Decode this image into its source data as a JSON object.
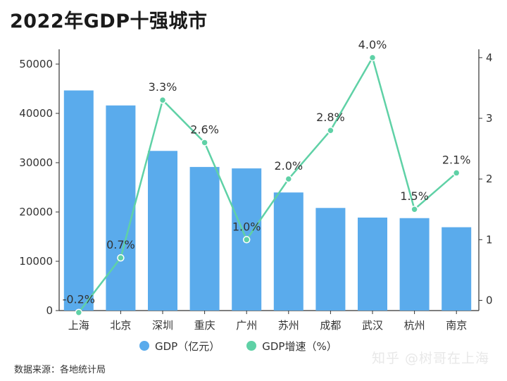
{
  "title": "2022年GDP十强城市",
  "source": "数据来源：各地统计局",
  "watermark": "知乎 @树哥在上海",
  "legend": {
    "gdp": "GDP（亿元）",
    "growth": "GDP增速（%）"
  },
  "colors": {
    "bar": "#5aabec",
    "line": "#5fd1a6",
    "axis": "#333333"
  },
  "chart_data": {
    "type": "bar+line",
    "categories": [
      "上海",
      "北京",
      "深圳",
      "重庆",
      "广州",
      "苏州",
      "成都",
      "武汉",
      "杭州",
      "南京"
    ],
    "series": [
      {
        "name": "GDP（亿元）",
        "type": "bar",
        "axis": "left",
        "values": [
          44653,
          41611,
          32388,
          29129,
          28839,
          23958,
          20818,
          18866,
          18753,
          16908
        ]
      },
      {
        "name": "GDP增速（%）",
        "type": "line",
        "axis": "right",
        "values": [
          -0.2,
          0.7,
          3.3,
          2.6,
          1.0,
          2.0,
          2.8,
          4.0,
          1.5,
          2.1
        ],
        "data_labels": [
          "-0.2%",
          "0.7%",
          "3.3%",
          "2.6%",
          "1.0%",
          "2.0%",
          "2.8%",
          "4.0%",
          "1.5%",
          "2.1%"
        ]
      }
    ],
    "y_left": {
      "ticks": [
        "0",
        "10000",
        "20000",
        "30000",
        "40000",
        "50000"
      ],
      "lim": [
        0,
        50000
      ]
    },
    "y_right": {
      "ticks": [
        "0",
        "1",
        "2",
        "3",
        "4"
      ],
      "lim": [
        -0.25,
        4.3
      ]
    },
    "grid": false,
    "legend_position": "bottom"
  }
}
